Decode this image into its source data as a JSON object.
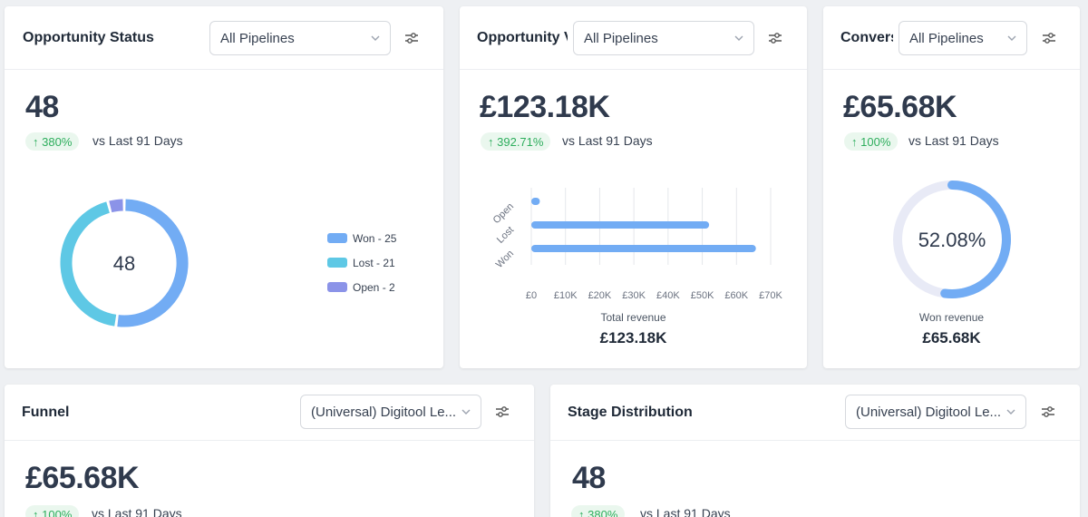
{
  "cards": {
    "status": {
      "title": "Opportunity Status",
      "pipeline": "All Pipelines",
      "value": "48",
      "change": "380%",
      "vs": "vs Last 91 Days",
      "center": "48",
      "legend": [
        {
          "label": "Won - 25",
          "color": "#72acf4"
        },
        {
          "label": "Lost - 21",
          "color": "#5ec8e5"
        },
        {
          "label": "Open - 2",
          "color": "#8b93e8"
        }
      ]
    },
    "value": {
      "title": "Opportunity V",
      "pipeline": "All Pipelines",
      "value": "£123.18K",
      "change": "392.71%",
      "vs": "vs Last 91 Days",
      "caption": "Total revenue",
      "caption_value": "£123.18K"
    },
    "conversion": {
      "title": "Convers",
      "pipeline": "All Pipelines",
      "value": "£65.68K",
      "change": "100%",
      "vs": "vs Last 91 Days",
      "percent": "52.08%",
      "caption": "Won revenue",
      "caption_value": "£65.68K"
    },
    "funnel": {
      "title": "Funnel",
      "pipeline": "(Universal) Digitool Le...",
      "value": "£65.68K",
      "change": "100%",
      "vs": "vs Last 91 Days"
    },
    "stage": {
      "title": "Stage Distribution",
      "pipeline": "(Universal) Digitool Le...",
      "value": "48",
      "change": "380%",
      "vs": "vs Last 91 Days"
    }
  },
  "chart_data": [
    {
      "type": "pie",
      "categories": [
        "Won",
        "Lost",
        "Open"
      ],
      "values": [
        25,
        21,
        2
      ],
      "colors": [
        "#72acf4",
        "#5ec8e5",
        "#8b93e8"
      ],
      "center_label": "48"
    },
    {
      "type": "bar",
      "orientation": "horizontal",
      "categories": [
        "Open",
        "Lost",
        "Won"
      ],
      "values": [
        2500,
        52000,
        65680
      ],
      "xticks": [
        "£0",
        "£10K",
        "£20K",
        "£30K",
        "£40K",
        "£50K",
        "£60K",
        "£70K"
      ],
      "xlim": [
        0,
        70000
      ],
      "color": "#72acf4"
    },
    {
      "type": "pie",
      "categories": [
        "Won revenue"
      ],
      "values": [
        52.08
      ],
      "center_label": "52.08%",
      "color": "#72acf4",
      "track_color": "#e8eaf6"
    }
  ]
}
